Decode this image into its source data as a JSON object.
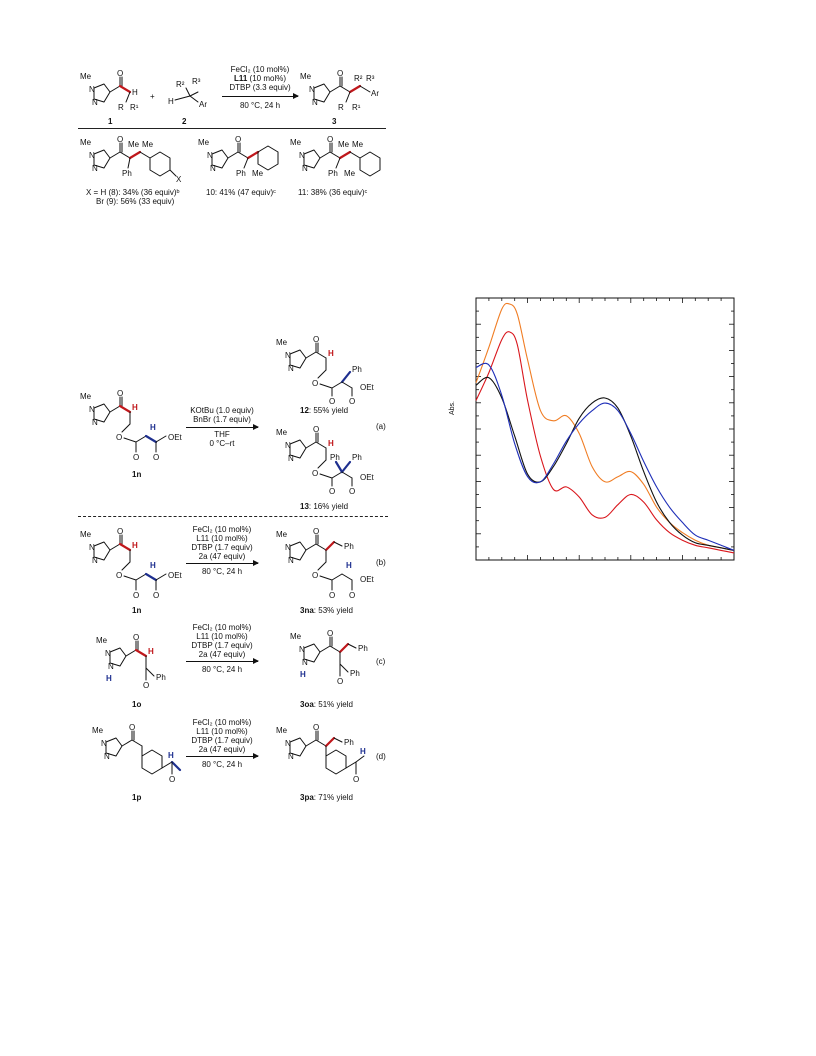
{
  "scheme1": {
    "reactant1_label": "1",
    "reactant2_label": "2",
    "plus": "+",
    "cond_line1": "FeCl₂ (10 mol%)",
    "cond_line2": "L11",
    "cond_line2b": " (10 mol%)",
    "cond_line3": "DTBP (3.3 equiv)",
    "cond_line4": "80 °C, 24 h",
    "products": [
      {
        "line1": "X = H (8): 34% (36 equiv)ᵇ",
        "line2": "Br (9): 56% (33 equiv)"
      },
      {
        "line1": "10: 41% (47 equiv)ᶜ"
      },
      {
        "line1": "11: 38% (36 equiv)ᶜ"
      }
    ]
  },
  "scheme_a": {
    "substrate": "1n",
    "cond1": "KOtBu (1.0 equiv)",
    "cond2": "BnBr (1.7 equiv)",
    "cond3": "THF",
    "cond4": "0 °C–rt",
    "tag": "(a)",
    "product1": "12: 55% yield",
    "product2": "13: 16% yield"
  },
  "scheme_b": {
    "substrate": "1n",
    "cond1": "FeCl₂ (10 mol%)",
    "cond2": "L11 (10 mol%)",
    "cond3": "DTBP (1.7 equiv)",
    "cond4": "2a (47 equiv)",
    "cond5": "80 °C, 24 h",
    "tag": "(b)",
    "product": "3na: 53% yield"
  },
  "scheme_c": {
    "substrate": "1o",
    "cond1": "FeCl₂ (10 mol%)",
    "cond2": "L11 (10 mol%)",
    "cond3": "DTBP (1.7 equiv)",
    "cond4": "2a (47 equiv)",
    "cond5": "80 °C, 24 h",
    "tag": "(c)",
    "product": "3oa: 51% yield"
  },
  "scheme_d": {
    "substrate": "1p",
    "cond1": "FeCl₂ (10 mol%)",
    "cond2": "L11 (10 mol%)",
    "cond3": "DTBP (1.7 equiv)",
    "cond4": "2a (47 equiv)",
    "cond5": "80 °C, 24 h",
    "tag": "(d)",
    "product": "3pa: 71% yield"
  },
  "atoms": {
    "me": "Me",
    "n": "N",
    "o": "O",
    "h": "H",
    "r": "R",
    "r1": "R¹",
    "r2": "R²",
    "r3": "R³",
    "ar": "Ar",
    "ph": "Ph",
    "x": "X",
    "oet": "OEt"
  },
  "chart_data": {
    "type": "line",
    "title": "",
    "xlabel": "",
    "ylabel": "Abs.",
    "x_tick_labels": [],
    "y_tick_labels": [],
    "xlim": [
      0,
      10
    ],
    "ylim": [
      0,
      1
    ],
    "grid": false,
    "series": [
      {
        "color": "#f07d24",
        "x": [
          0,
          0.5,
          1,
          1.3,
          1.6,
          2,
          2.5,
          3,
          3.5,
          4,
          4.5,
          5,
          5.5,
          6,
          6.5,
          7,
          7.5,
          8,
          8.5,
          9,
          9.5,
          10
        ],
        "y": [
          0.69,
          0.83,
          0.98,
          1.0,
          0.96,
          0.78,
          0.58,
          0.54,
          0.56,
          0.49,
          0.36,
          0.3,
          0.32,
          0.34,
          0.29,
          0.2,
          0.14,
          0.1,
          0.07,
          0.05,
          0.04,
          0.03
        ]
      },
      {
        "color": "#d9161c",
        "x": [
          0,
          0.5,
          1,
          1.3,
          1.6,
          2,
          2.5,
          3,
          3.5,
          4,
          4.5,
          5,
          5.5,
          6,
          6.5,
          7,
          7.5,
          8,
          8.5,
          9,
          9.5,
          10
        ],
        "y": [
          0.62,
          0.73,
          0.86,
          0.89,
          0.84,
          0.62,
          0.4,
          0.27,
          0.28,
          0.24,
          0.17,
          0.16,
          0.21,
          0.25,
          0.22,
          0.15,
          0.1,
          0.07,
          0.05,
          0.04,
          0.03,
          0.02
        ]
      },
      {
        "color": "#111111",
        "x": [
          0,
          0.5,
          1,
          1.5,
          2,
          2.5,
          3,
          3.5,
          4,
          4.5,
          5,
          5.5,
          6,
          6.5,
          7,
          7.5,
          8,
          8.5,
          9,
          9.5,
          10
        ],
        "y": [
          0.68,
          0.71,
          0.63,
          0.48,
          0.33,
          0.3,
          0.36,
          0.45,
          0.55,
          0.61,
          0.63,
          0.59,
          0.48,
          0.34,
          0.22,
          0.14,
          0.09,
          0.06,
          0.05,
          0.04,
          0.03
        ]
      },
      {
        "color": "#1f2fb8",
        "x": [
          0,
          0.5,
          1,
          1.5,
          2,
          2.5,
          3,
          3.5,
          4,
          4.5,
          5,
          5.5,
          6,
          6.5,
          7,
          7.5,
          8,
          8.5,
          9,
          9.5,
          10
        ],
        "y": [
          0.75,
          0.76,
          0.64,
          0.45,
          0.32,
          0.3,
          0.37,
          0.46,
          0.53,
          0.58,
          0.61,
          0.58,
          0.49,
          0.38,
          0.28,
          0.2,
          0.14,
          0.09,
          0.07,
          0.05,
          0.03
        ]
      }
    ]
  }
}
